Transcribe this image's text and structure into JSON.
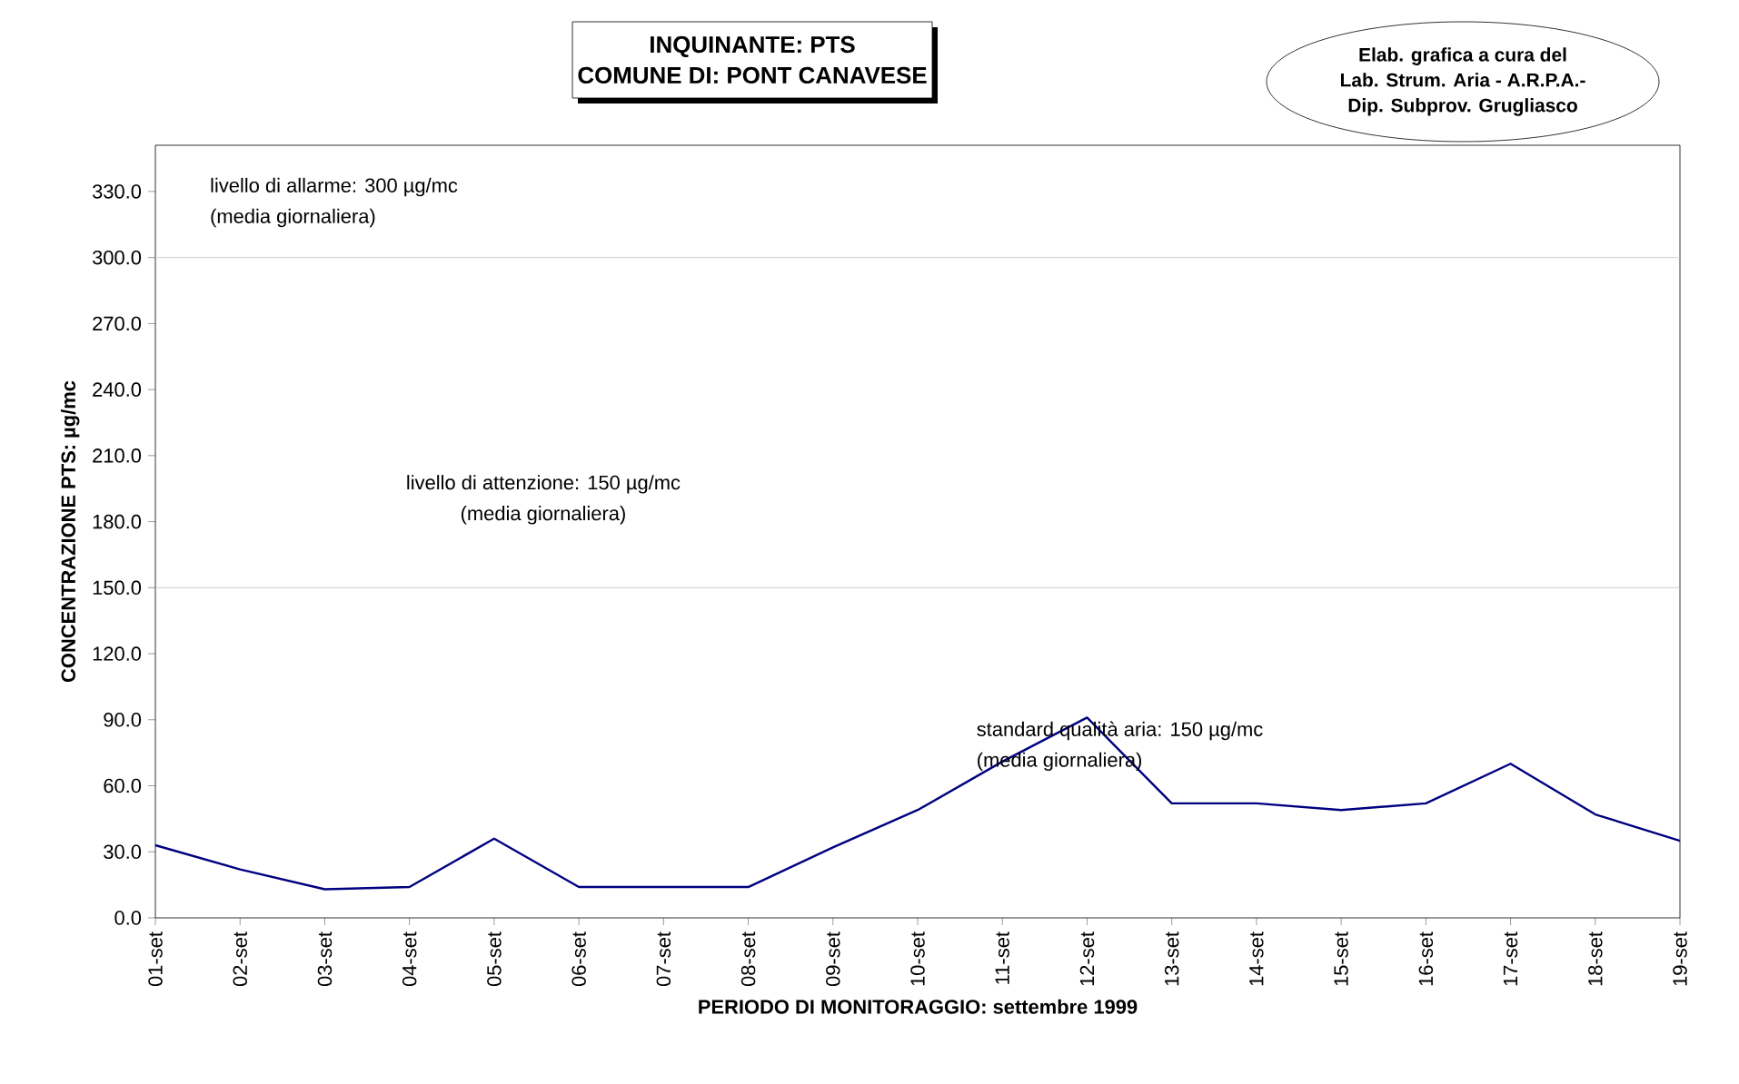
{
  "chart_data": {
    "type": "line",
    "title": "INQUINANTE: PTS",
    "subtitle": "COMUNE DI: PONT CANAVESE",
    "xlabel": "PERIODO DI MONITORAGGIO: settembre 1999",
    "ylabel": "CONCENTRAZIONE PTS: µg/mc",
    "categories": [
      "01-set",
      "02-set",
      "03-set",
      "04-set",
      "05-set",
      "06-set",
      "07-set",
      "08-set",
      "09-set",
      "10-set",
      "11-set",
      "12-set",
      "13-set",
      "14-set",
      "15-set",
      "16-set",
      "17-set",
      "18-set",
      "19-set"
    ],
    "series": [
      {
        "color": "#000080",
        "values": [
          33,
          22,
          13,
          14,
          36,
          14,
          14,
          14,
          32,
          49,
          71,
          91,
          52,
          52,
          49,
          52,
          70,
          47,
          35
        ]
      }
    ],
    "ylim": [
      0,
      351
    ],
    "yticks": [
      {
        "value": 0,
        "label": "0.0"
      },
      {
        "value": 30,
        "label": "30.0"
      },
      {
        "value": 60,
        "label": "60.0"
      },
      {
        "value": 90,
        "label": "90.0"
      },
      {
        "value": 120,
        "label": "120.0"
      },
      {
        "value": 150,
        "label": "150.0"
      },
      {
        "value": 180,
        "label": "180.0"
      },
      {
        "value": 210,
        "label": "210.0"
      },
      {
        "value": 240,
        "label": "240.0"
      },
      {
        "value": 270,
        "label": "270.0"
      },
      {
        "value": 300,
        "label": "300.0"
      },
      {
        "value": 330,
        "label": "330.0"
      }
    ],
    "ref_lines": [
      {
        "axis": "y",
        "value": 300,
        "color": "#c0c0c0"
      },
      {
        "axis": "y",
        "value": 150,
        "color": "#c0c0c0"
      }
    ],
    "annotations": [
      "livello di allarme: 300 µg/mc",
      "(media giornaliera)",
      "livello di attenzione: 150 µg/mc",
      "(media giornaliera)",
      "standard qualità aria: 150 µg/mc",
      "(media giornaliera)",
      "Elab. grafica a cura del",
      "Lab. Strum. Aria - A.R.P.A.-",
      "Dip. Subprov. Grugliasco"
    ],
    "grid": false,
    "marker": "none",
    "line_style": "solid"
  }
}
